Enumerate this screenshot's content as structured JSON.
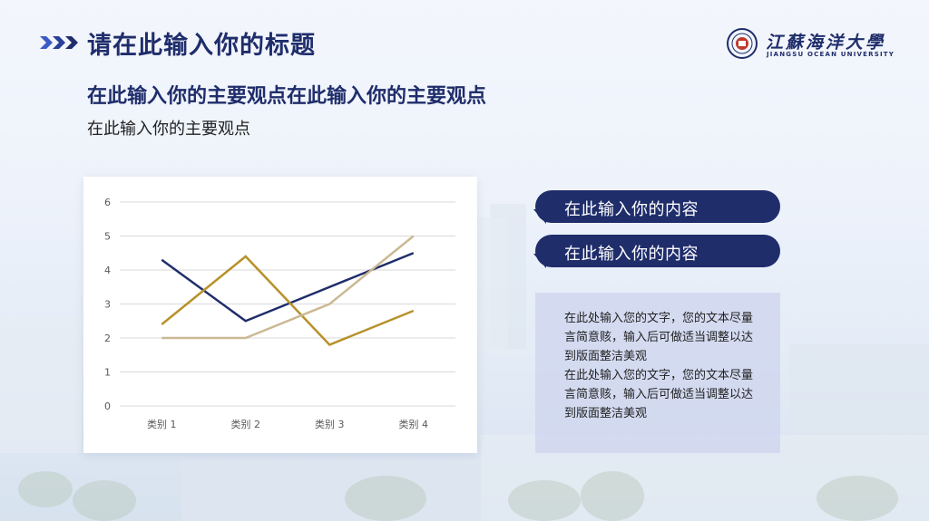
{
  "header": {
    "title": "请在此输入你的标题",
    "logo_cn": "江蘇海洋大學",
    "logo_en": "JIANGSU   OCEAN   UNIVERSITY"
  },
  "main_point": "在此输入你的主要观点在此输入你的主要观点",
  "sub_point": "在此输入你的主要观点",
  "pills": [
    "在此输入你的内容",
    "在此输入你的内容"
  ],
  "text_box": {
    "paragraphs": [
      "在此处输入您的文字，您的文本尽量言简意赅，输入后可做适当调整以达到版面整洁美观",
      "在此处输入您的文字，您的文本尽量言简意赅，输入后可做适当调整以达到版面整洁美观"
    ]
  },
  "colors": {
    "navy": "#1f2d6b",
    "gold": "#b8912a",
    "tan": "#cbb994",
    "panel": "#cdd4ee"
  },
  "chart_data": {
    "type": "line",
    "categories": [
      "类别 1",
      "类别 2",
      "类别 3",
      "类别 4"
    ],
    "y_ticks": [
      "0",
      "1",
      "2",
      "3",
      "4",
      "5",
      "6"
    ],
    "ylim": [
      0,
      6
    ],
    "grid": true,
    "legend": "none",
    "series": [
      {
        "values": [
          4.3,
          2.5,
          3.5,
          4.5
        ],
        "color": "#1f2d6b"
      },
      {
        "values": [
          2.4,
          4.4,
          1.8,
          2.8
        ],
        "color": "#b8912a"
      },
      {
        "values": [
          2.0,
          2.0,
          3.0,
          5.0
        ],
        "color": "#cbb994"
      }
    ]
  }
}
